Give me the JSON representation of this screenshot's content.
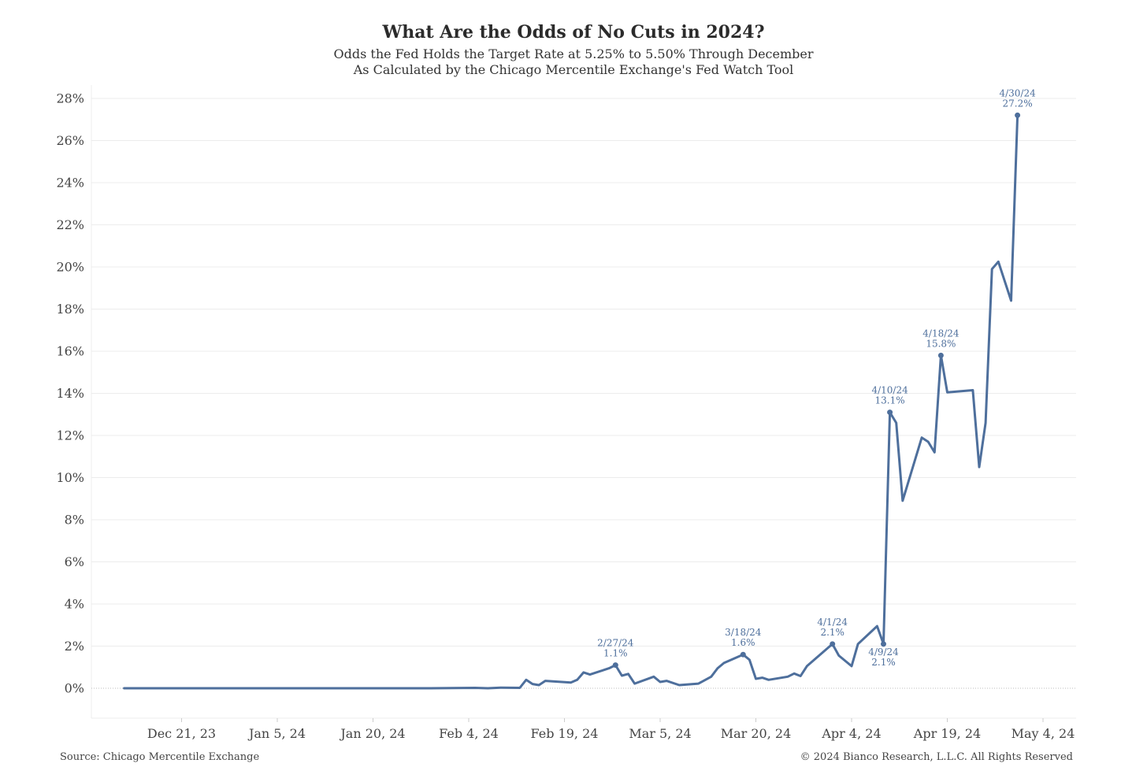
{
  "header": {
    "title": "What Are the Odds of No Cuts in 2024?",
    "subtitle_line1": "Odds the Fed Holds the Target Rate at 5.25% to 5.50% Through December",
    "subtitle_line2": "As Calculated by the Chicago Mercentile Exchange's Fed Watch Tool"
  },
  "footer": {
    "source": "Source: Chicago Mercentile Exchange",
    "copyright": "© 2024 Bianco Research, L.L.C. All Rights Reserved"
  },
  "colors": {
    "line": "#4e6f9c",
    "annotation": "#4e6f9c",
    "grid": "#ececec",
    "axis_text": "#444444",
    "zero_line": "#bdbdbd"
  },
  "chart_data": {
    "type": "line",
    "title": "What Are the Odds of No Cuts in 2024?",
    "xlabel": "",
    "ylabel": "",
    "x_ticks": [
      "Dec 21, 23",
      "Jan 5, 24",
      "Jan 20, 24",
      "Feb 4, 24",
      "Feb 19, 24",
      "Mar 5, 24",
      "Mar 20, 24",
      "Apr 4, 24",
      "Apr 19, 24",
      "May 4, 24"
    ],
    "x_range": [
      "2023-12-12",
      "2024-05-04"
    ],
    "y_ticks": [
      "0%",
      "2%",
      "4%",
      "6%",
      "8%",
      "10%",
      "12%",
      "14%",
      "16%",
      "18%",
      "20%",
      "22%",
      "24%",
      "26%",
      "28%"
    ],
    "ylim": [
      -1.4,
      29
    ],
    "grid": true,
    "series": [
      {
        "points": [
          [
            "2023-12-12",
            0.0
          ],
          [
            "2023-12-14",
            0.0
          ],
          [
            "2023-12-21",
            0.0
          ],
          [
            "2024-01-02",
            0.0
          ],
          [
            "2024-01-15",
            0.0
          ],
          [
            "2024-01-29",
            0.0
          ],
          [
            "2024-02-05",
            0.02
          ],
          [
            "2024-02-07",
            0.0
          ],
          [
            "2024-02-09",
            0.03
          ],
          [
            "2024-02-12",
            0.02
          ],
          [
            "2024-02-13",
            0.4
          ],
          [
            "2024-02-14",
            0.2
          ],
          [
            "2024-02-15",
            0.15
          ],
          [
            "2024-02-16",
            0.35
          ],
          [
            "2024-02-20",
            0.27
          ],
          [
            "2024-02-21",
            0.4
          ],
          [
            "2024-02-22",
            0.75
          ],
          [
            "2024-02-23",
            0.65
          ],
          [
            "2024-02-26",
            0.95
          ],
          [
            "2024-02-27",
            1.1
          ],
          [
            "2024-02-28",
            0.6
          ],
          [
            "2024-02-29",
            0.68
          ],
          [
            "2024-03-01",
            0.22
          ],
          [
            "2024-03-04",
            0.55
          ],
          [
            "2024-03-05",
            0.3
          ],
          [
            "2024-03-06",
            0.35
          ],
          [
            "2024-03-08",
            0.15
          ],
          [
            "2024-03-11",
            0.22
          ],
          [
            "2024-03-13",
            0.55
          ],
          [
            "2024-03-14",
            0.95
          ],
          [
            "2024-03-15",
            1.2
          ],
          [
            "2024-03-18",
            1.6
          ],
          [
            "2024-03-19",
            1.35
          ],
          [
            "2024-03-20",
            0.45
          ],
          [
            "2024-03-21",
            0.5
          ],
          [
            "2024-03-22",
            0.4
          ],
          [
            "2024-03-25",
            0.55
          ],
          [
            "2024-03-26",
            0.7
          ],
          [
            "2024-03-27",
            0.58
          ],
          [
            "2024-03-28",
            1.05
          ],
          [
            "2024-04-01",
            2.1
          ],
          [
            "2024-04-02",
            1.55
          ],
          [
            "2024-04-04",
            1.05
          ],
          [
            "2024-04-05",
            2.1
          ],
          [
            "2024-04-08",
            2.95
          ],
          [
            "2024-04-09",
            2.1
          ],
          [
            "2024-04-10",
            13.1
          ],
          [
            "2024-04-11",
            12.6
          ],
          [
            "2024-04-12",
            8.9
          ],
          [
            "2024-04-15",
            11.9
          ],
          [
            "2024-04-16",
            11.7
          ],
          [
            "2024-04-17",
            11.2
          ],
          [
            "2024-04-18",
            15.8
          ],
          [
            "2024-04-19",
            14.05
          ],
          [
            "2024-04-23",
            14.15
          ],
          [
            "2024-04-24",
            10.5
          ],
          [
            "2024-04-25",
            12.6
          ],
          [
            "2024-04-26",
            19.9
          ],
          [
            "2024-04-27",
            20.25
          ],
          [
            "2024-04-29",
            18.4
          ],
          [
            "2024-04-30",
            27.2
          ]
        ]
      }
    ],
    "annotations": [
      {
        "date": "2024-02-27",
        "value": 1.1,
        "label_date": "2/27/24",
        "label_value": "1.1%",
        "placement": "above"
      },
      {
        "date": "2024-03-18",
        "value": 1.6,
        "label_date": "3/18/24",
        "label_value": "1.6%",
        "placement": "above"
      },
      {
        "date": "2024-04-01",
        "value": 2.1,
        "label_date": "4/1/24",
        "label_value": "2.1%",
        "placement": "above"
      },
      {
        "date": "2024-04-09",
        "value": 2.1,
        "label_date": "4/9/24",
        "label_value": "2.1%",
        "placement": "below"
      },
      {
        "date": "2024-04-10",
        "value": 13.1,
        "label_date": "4/10/24",
        "label_value": "13.1%",
        "placement": "above"
      },
      {
        "date": "2024-04-18",
        "value": 15.8,
        "label_date": "4/18/24",
        "label_value": "15.8%",
        "placement": "above"
      },
      {
        "date": "2024-04-30",
        "value": 27.2,
        "label_date": "4/30/24",
        "label_value": "27.2%",
        "placement": "above"
      }
    ]
  }
}
